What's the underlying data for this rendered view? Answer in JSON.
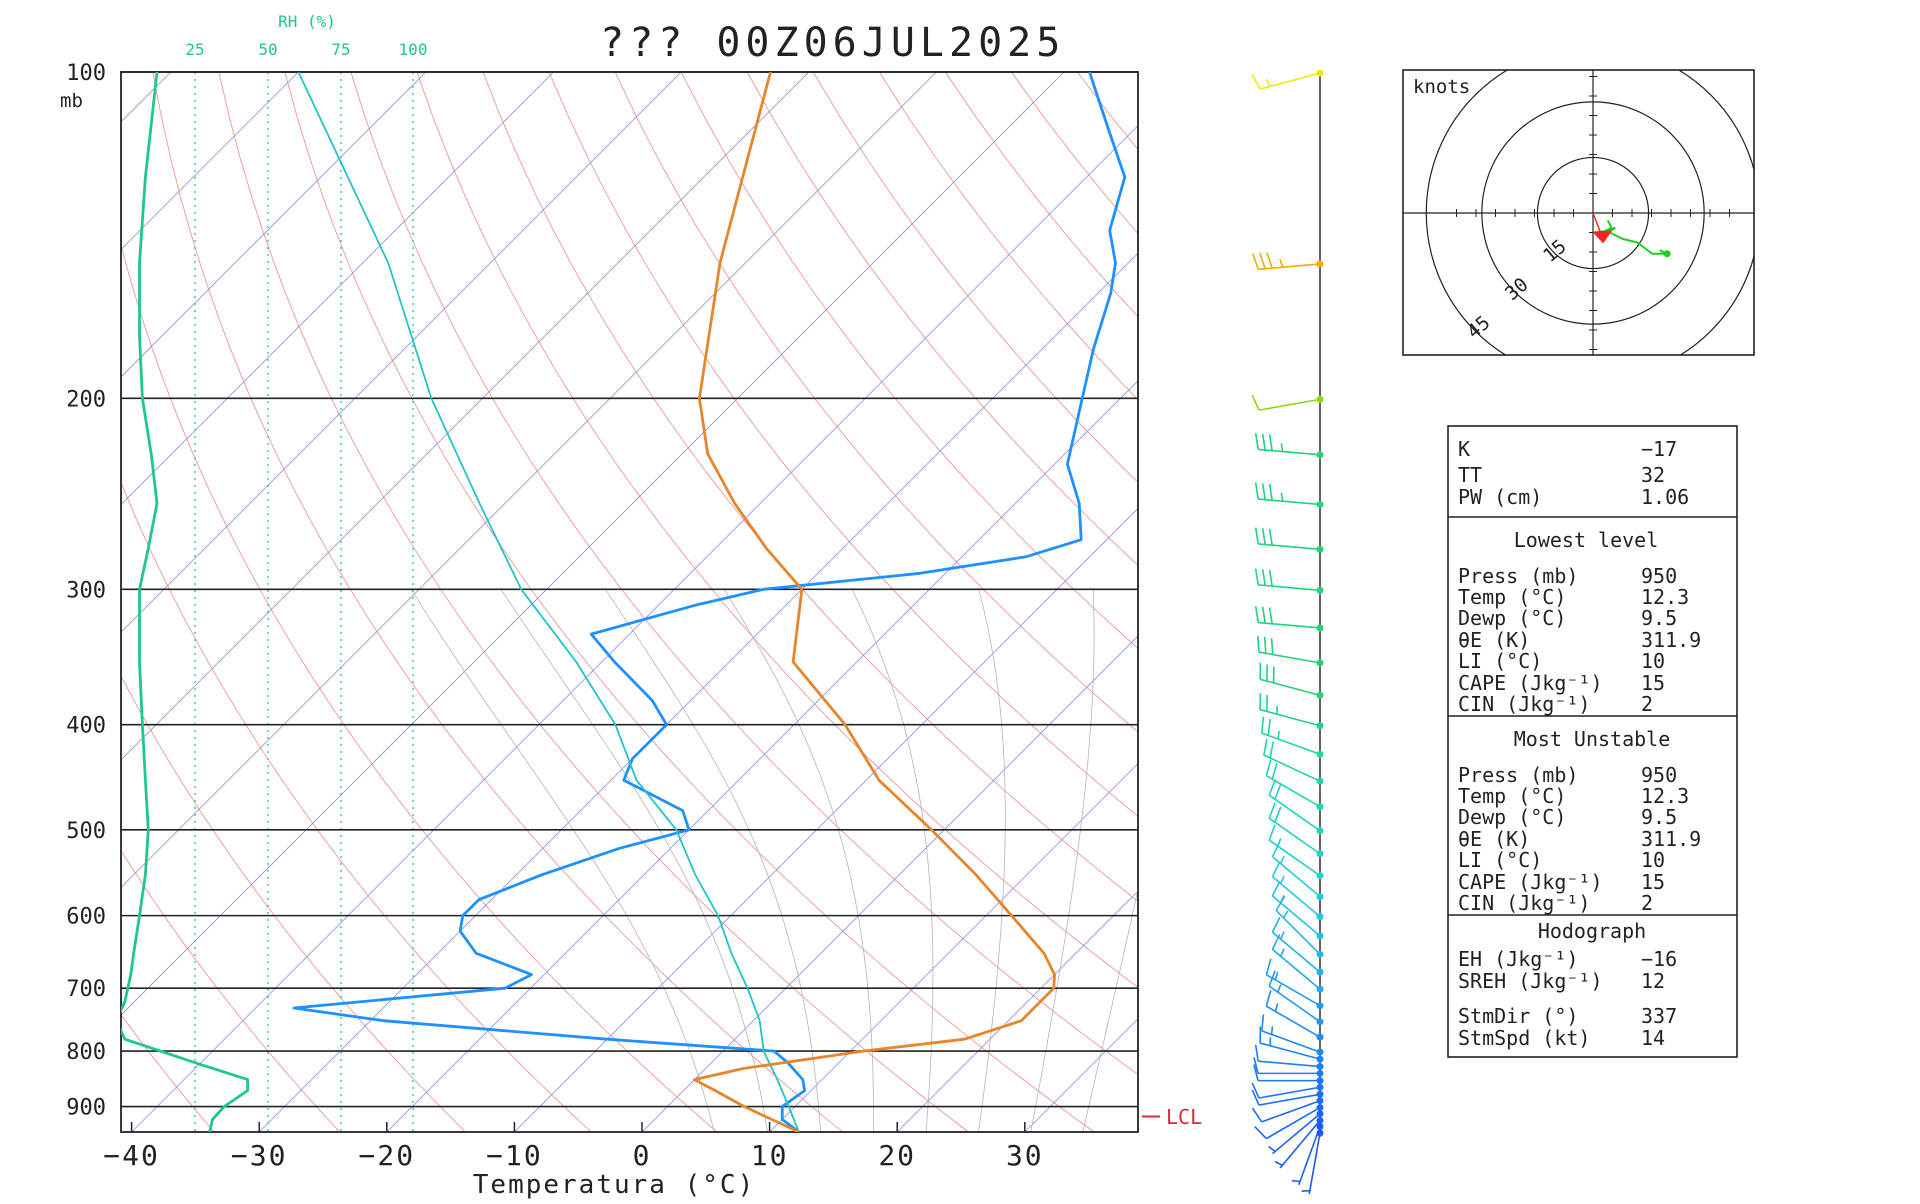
{
  "title": "??? 00Z06JUL2025",
  "chart_data": {
    "type": "line",
    "subtype": "skew-t log-p sounding",
    "title": "??? 00Z06JUL2025",
    "xlabel": "Temperatura (°C)",
    "ylabel_unit": "mb",
    "x_ticks": [
      -40,
      -30,
      -20,
      -10,
      0,
      10,
      20,
      30
    ],
    "x_tick_labels": [
      "−40",
      "−30",
      "−20",
      "−10",
      "0",
      "10",
      "20",
      "30"
    ],
    "y_ticks": [
      100,
      200,
      300,
      400,
      500,
      600,
      700,
      800,
      900
    ],
    "y_tick_labels": [
      "100",
      "200",
      "300",
      "400",
      "500",
      "600",
      "700",
      "800",
      "900"
    ],
    "pressure_range_mb": [
      100,
      950
    ],
    "temperature_range_c": [
      -40,
      39
    ],
    "log_pressure_axis": true,
    "rh_axis": {
      "label": "RH (%)",
      "ticks": [
        25,
        50,
        75,
        100
      ]
    },
    "lcl_label": "LCL",
    "lcl_pressure_mb": 900,
    "series": [
      {
        "name": "Temperature",
        "color": "#1e90ff",
        "points": [
          [
            950,
            12.3
          ],
          [
            925,
            10
          ],
          [
            900,
            9
          ],
          [
            870,
            9.5
          ],
          [
            850,
            8.5
          ],
          [
            820,
            6
          ],
          [
            800,
            4
          ],
          [
            780,
            -10
          ],
          [
            750,
            -29
          ],
          [
            730,
            -37
          ],
          [
            700,
            -22
          ],
          [
            680,
            -21
          ],
          [
            650,
            -27
          ],
          [
            620,
            -30
          ],
          [
            600,
            -31
          ],
          [
            580,
            -31
          ],
          [
            550,
            -28
          ],
          [
            520,
            -24
          ],
          [
            500,
            -20
          ],
          [
            480,
            -22
          ],
          [
            450,
            -29
          ],
          [
            430,
            -30
          ],
          [
            400,
            -30
          ],
          [
            380,
            -33
          ],
          [
            350,
            -39
          ],
          [
            330,
            -43
          ],
          [
            310,
            -37
          ],
          [
            300,
            -33
          ],
          [
            290,
            -22
          ],
          [
            280,
            -15
          ],
          [
            270,
            -12
          ],
          [
            250,
            -15
          ],
          [
            230,
            -19
          ],
          [
            200,
            -23
          ],
          [
            180,
            -26
          ],
          [
            160,
            -29
          ],
          [
            150,
            -31
          ],
          [
            140,
            -34
          ],
          [
            125,
            -37
          ],
          [
            113,
            -42
          ],
          [
            100,
            -48
          ]
        ]
      },
      {
        "name": "Relative humidity",
        "color": "#1ec887",
        "points": [
          [
            950,
            30
          ],
          [
            925,
            31
          ],
          [
            900,
            35
          ],
          [
            870,
            43
          ],
          [
            850,
            43
          ],
          [
            820,
            25
          ],
          [
            780,
            1
          ],
          [
            760,
            -1
          ],
          [
            740,
            -1
          ],
          [
            720,
            1
          ],
          [
            700,
            2
          ],
          [
            680,
            3
          ],
          [
            650,
            4
          ],
          [
            600,
            6
          ],
          [
            550,
            8
          ],
          [
            500,
            9
          ],
          [
            450,
            8
          ],
          [
            400,
            7
          ],
          [
            350,
            6
          ],
          [
            300,
            6
          ],
          [
            275,
            9
          ],
          [
            250,
            12
          ],
          [
            225,
            10
          ],
          [
            200,
            7
          ],
          [
            175,
            6
          ],
          [
            150,
            6
          ],
          [
            125,
            8
          ],
          [
            100,
            12
          ]
        ]
      },
      {
        "name": "Parcel",
        "color": "#22c4c4",
        "points": [
          [
            950,
            12.3
          ],
          [
            900,
            9.5
          ],
          [
            850,
            6.5
          ],
          [
            800,
            3.2
          ],
          [
            750,
            0.5
          ],
          [
            700,
            -3
          ],
          [
            650,
            -7
          ],
          [
            600,
            -11
          ],
          [
            550,
            -16
          ],
          [
            500,
            -21
          ],
          [
            450,
            -28
          ],
          [
            400,
            -34
          ],
          [
            350,
            -42
          ],
          [
            300,
            -52
          ],
          [
            250,
            -62
          ],
          [
            200,
            -74
          ],
          [
            150,
            -88
          ],
          [
            100,
            -110
          ]
        ]
      },
      {
        "name": "Theta-E",
        "color": "#e6862c",
        "points": [
          [
            950,
            12.3
          ],
          [
            900,
            6
          ],
          [
            870,
            2.5
          ],
          [
            850,
            0
          ],
          [
            830,
            3
          ],
          [
            800,
            11
          ],
          [
            780,
            18
          ],
          [
            750,
            21
          ],
          [
            700,
            21
          ],
          [
            680,
            20
          ],
          [
            650,
            17.5
          ],
          [
            600,
            12
          ],
          [
            550,
            6
          ],
          [
            500,
            -1
          ],
          [
            450,
            -9
          ],
          [
            400,
            -16
          ],
          [
            350,
            -25
          ],
          [
            300,
            -30
          ],
          [
            275,
            -36
          ],
          [
            250,
            -42
          ],
          [
            225,
            -48
          ],
          [
            200,
            -53
          ],
          [
            150,
            -62
          ],
          [
            100,
            -73
          ]
        ]
      }
    ],
    "wind_barbs": {
      "pressure_levels": [
        100,
        150,
        200,
        225,
        250,
        275,
        300,
        325,
        350,
        375,
        400,
        425,
        450,
        475,
        500,
        525,
        550,
        575,
        600,
        625,
        650,
        675,
        700,
        725,
        750,
        775,
        800,
        812,
        825,
        837,
        850,
        862,
        875,
        887,
        900,
        912,
        925,
        937,
        950
      ],
      "direction_deg": [
        255,
        265,
        260,
        275,
        275,
        275,
        275,
        275,
        280,
        285,
        285,
        290,
        295,
        300,
        305,
        305,
        305,
        310,
        310,
        310,
        315,
        310,
        310,
        300,
        305,
        300,
        290,
        285,
        275,
        270,
        270,
        260,
        260,
        250,
        240,
        230,
        220,
        200,
        190
      ],
      "speed_kt": [
        15,
        35,
        10,
        35,
        35,
        30,
        30,
        30,
        30,
        30,
        25,
        25,
        20,
        20,
        20,
        20,
        15,
        15,
        15,
        15,
        15,
        15,
        15,
        15,
        15,
        15,
        15,
        15,
        10,
        10,
        10,
        10,
        10,
        10,
        10,
        5,
        5,
        5,
        5
      ],
      "colors": [
        "#ecec00",
        "#f2ac00",
        "#8cd814",
        "#22d27c",
        "#22d27c",
        "#22d27c",
        "#22d27c",
        "#22d27c",
        "#22d27c",
        "#22d27c",
        "#22d08e",
        "#22d4a0",
        "#22d4a8",
        "#22d4b2",
        "#22d4bc",
        "#22d0c2",
        "#22d0ca",
        "#22ccd2",
        "#22c8dc",
        "#22c0e6",
        "#22b8e6",
        "#22b0e8",
        "#22a8ec",
        "#229cec",
        "#2296ee",
        "#228cf0",
        "#1e88f2",
        "#1e84f2",
        "#1e80f2",
        "#1e7cf2",
        "#1e78f2",
        "#1e74f2",
        "#1e70f2",
        "#1e6cf2",
        "#1e68f2",
        "#1e64f2",
        "#1e60f2",
        "#1e5cf2",
        "#1e58f2"
      ]
    },
    "hodograph": {
      "unit_label": "knots",
      "ring_labels": [
        "15",
        "30",
        "45"
      ],
      "ring_values_kt": [
        15,
        30,
        45
      ],
      "points_uv": [
        [
          4,
          -2
        ],
        [
          5,
          -4
        ],
        [
          3,
          -5
        ],
        [
          6,
          -4
        ],
        [
          3,
          -6
        ],
        [
          2,
          -5
        ],
        [
          4,
          -5
        ],
        [
          8,
          -7
        ],
        [
          12,
          -8
        ],
        [
          16,
          -11
        ],
        [
          20,
          -11
        ],
        [
          18,
          -10
        ],
        [
          20,
          -11
        ]
      ],
      "storm_motion_uv": [
        5,
        -13
      ],
      "colors": {
        "trace": "#22cc22",
        "storm": "#ff2222"
      }
    }
  },
  "stats": {
    "indices": [
      {
        "label": "K",
        "value": "−17"
      },
      {
        "label": "TT",
        "value": "32"
      },
      {
        "label": "PW (cm)",
        "value": "1.06"
      }
    ],
    "lowest_level": {
      "heading": "Lowest level",
      "rows": [
        {
          "label": "Press (mb)",
          "value": "950"
        },
        {
          "label": "Temp (°C)",
          "value": "12.3"
        },
        {
          "label": "Dewp (°C)",
          "value": "9.5"
        },
        {
          "label": "θE (K)",
          "value": "311.9"
        },
        {
          "label": "LI (°C)",
          "value": "10"
        },
        {
          "label": "CAPE (Jkg⁻¹)",
          "value": "15"
        },
        {
          "label": "CIN (Jkg⁻¹)",
          "value": "2"
        }
      ]
    },
    "most_unstable": {
      "heading": "Most Unstable",
      "rows": [
        {
          "label": "Press (mb)",
          "value": "950"
        },
        {
          "label": "Temp (°C)",
          "value": "12.3"
        },
        {
          "label": "Dewp (°C)",
          "value": "9.5"
        },
        {
          "label": "θE (K)",
          "value": "311.9"
        },
        {
          "label": "LI (°C)",
          "value": "10"
        },
        {
          "label": "CAPE (Jkg⁻¹)",
          "value": "15"
        },
        {
          "label": "CIN (Jkg⁻¹)",
          "value": "2"
        }
      ]
    },
    "hodograph_stats": {
      "heading": "Hodograph",
      "rows": [
        {
          "label": "EH (Jkg⁻¹)",
          "value": "−16"
        },
        {
          "label": "SREH (Jkg⁻¹)",
          "value": "12"
        }
      ],
      "storm_rows": [
        {
          "label": "StmDir (°)",
          "value": "337"
        },
        {
          "label": "StmSpd (kt)",
          "value": "14"
        }
      ]
    }
  }
}
